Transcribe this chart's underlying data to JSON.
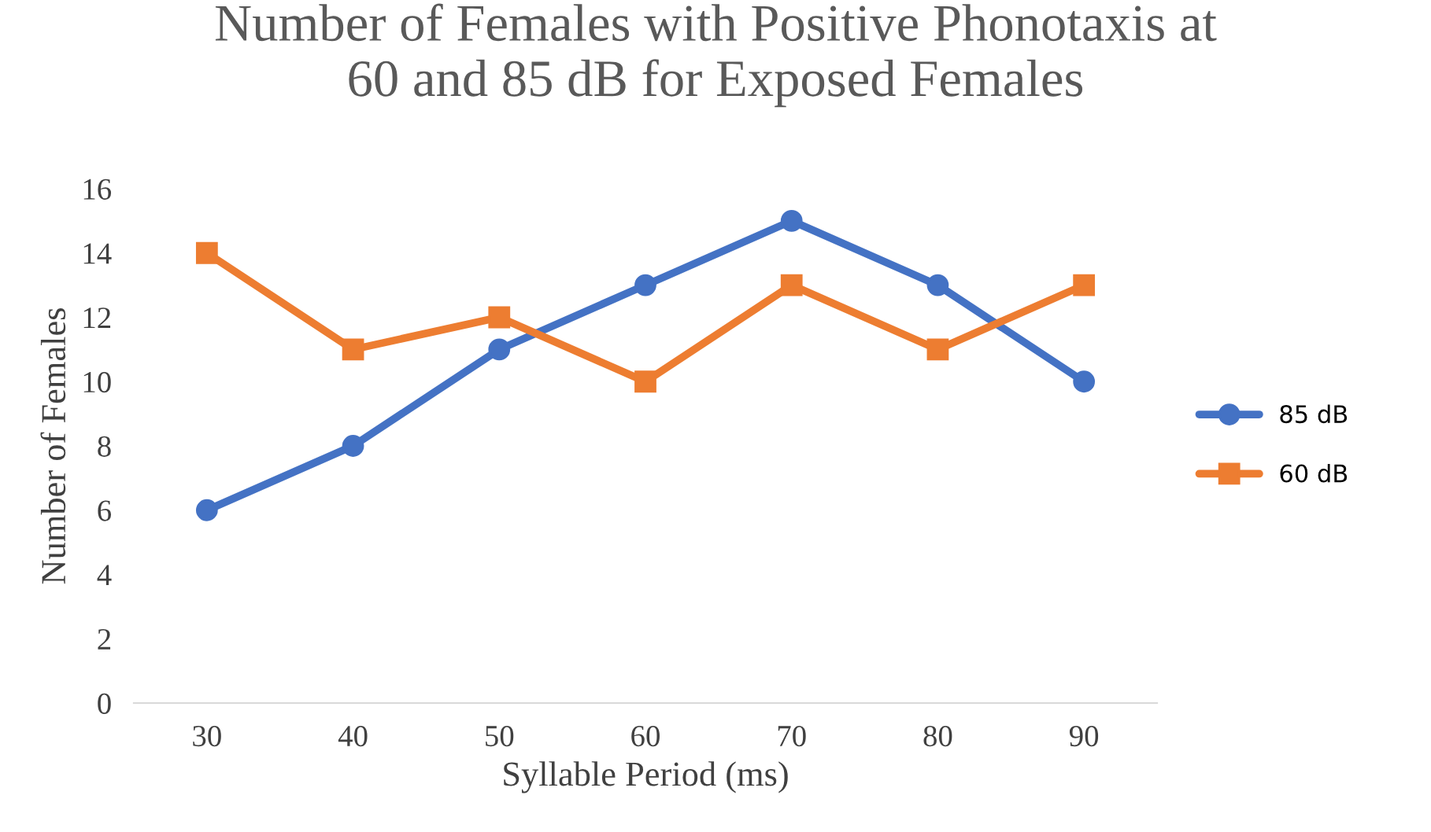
{
  "chart_data": {
    "type": "line",
    "title": "Number of Females with Positive Phonotaxis at\n60 and 85 dB for Exposed Females",
    "xlabel": "Syllable Period (ms)",
    "ylabel": "Number of Females",
    "categories": [
      "30",
      "40",
      "50",
      "60",
      "70",
      "80",
      "90"
    ],
    "series": [
      {
        "name": "85 dB",
        "color": "#4472c4",
        "marker": "circle",
        "values": [
          6,
          8,
          11,
          13,
          15,
          13,
          10
        ]
      },
      {
        "name": "60 dB",
        "color": "#ed7d31",
        "marker": "square",
        "values": [
          14,
          11,
          12,
          10,
          13,
          11,
          13
        ]
      }
    ],
    "ylim": [
      0,
      16
    ],
    "yticks": [
      0,
      2,
      4,
      6,
      8,
      10,
      12,
      14,
      16
    ],
    "grid": false,
    "legend": "right",
    "line_style": "solid"
  }
}
